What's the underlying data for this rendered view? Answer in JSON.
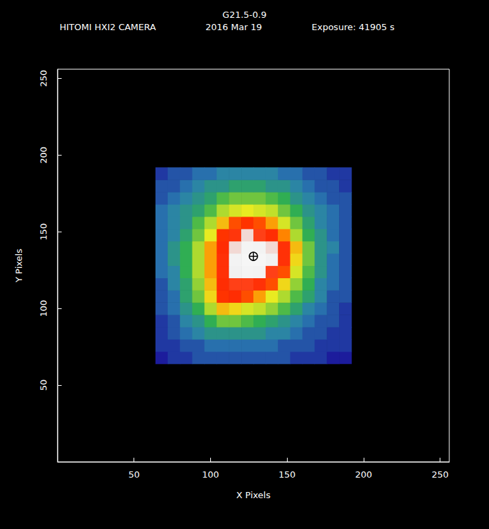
{
  "chart_data": {
    "type": "heatmap",
    "title": "G21.5-0.9",
    "subtitle": [
      "HITOMI HXI2 CAMERA",
      "2016 Mar 19",
      "Exposure: 41905 s"
    ],
    "x_label": "X Pixels",
    "y_label": "Y Pixels",
    "xlim": [
      0,
      256
    ],
    "ylim": [
      0,
      256
    ],
    "xticks": [
      50,
      100,
      150,
      200,
      250
    ],
    "yticks": [
      50,
      100,
      150,
      200,
      250
    ],
    "grid": false,
    "cells": {
      "x_edges": [
        64,
        72,
        80,
        88,
        96,
        104,
        112,
        120,
        128,
        136,
        144,
        152,
        160,
        168,
        176,
        184,
        192
      ],
      "y_edges": [
        64,
        72,
        80,
        88,
        96,
        104,
        112,
        120,
        128,
        136,
        144,
        152,
        160,
        168,
        176,
        184,
        192
      ],
      "values": [
        [
          0.8,
          0.9,
          0.9,
          1.0,
          1.0,
          1.0,
          1.0,
          1.0,
          1.0,
          1.0,
          1.0,
          0.9,
          0.9,
          0.9,
          0.8,
          0.8
        ],
        [
          0.9,
          0.9,
          1.0,
          1.0,
          1.1,
          1.1,
          1.1,
          1.1,
          1.1,
          1.1,
          1.0,
          1.0,
          1.0,
          0.9,
          0.9,
          0.9
        ],
        [
          0.9,
          1.0,
          1.1,
          1.2,
          1.3,
          1.3,
          1.3,
          1.3,
          1.3,
          1.2,
          1.2,
          1.1,
          1.0,
          1.0,
          0.9,
          0.9
        ],
        [
          0.9,
          1.0,
          1.2,
          1.3,
          1.5,
          1.7,
          1.7,
          1.6,
          1.5,
          1.4,
          1.3,
          1.2,
          1.1,
          1.0,
          1.0,
          0.9
        ],
        [
          1.0,
          1.1,
          1.3,
          1.5,
          1.9,
          2.4,
          2.3,
          2.1,
          2.0,
          1.8,
          1.6,
          1.4,
          1.2,
          1.1,
          1.0,
          0.9
        ],
        [
          1.0,
          1.1,
          1.4,
          1.7,
          2.3,
          2.9,
          3.0,
          2.8,
          2.5,
          2.2,
          1.9,
          1.6,
          1.4,
          1.2,
          1.0,
          1.0
        ],
        [
          1.0,
          1.2,
          1.4,
          1.8,
          2.4,
          3.0,
          3.3,
          3.3,
          3.1,
          2.8,
          2.3,
          1.8,
          1.5,
          1.2,
          1.1,
          1.0
        ],
        [
          1.1,
          1.2,
          1.5,
          1.9,
          2.5,
          3.1,
          3.7,
          3.9,
          3.8,
          3.3,
          2.8,
          2.1,
          1.6,
          1.3,
          1.1,
          1.0
        ],
        [
          1.1,
          1.3,
          1.5,
          1.9,
          2.5,
          3.1,
          3.8,
          4.0,
          4.0,
          3.7,
          3.1,
          2.3,
          1.7,
          1.3,
          1.1,
          1.0
        ],
        [
          1.1,
          1.3,
          1.5,
          1.9,
          2.5,
          3.0,
          3.6,
          3.9,
          3.8,
          3.6,
          3.1,
          2.4,
          1.7,
          1.3,
          1.2,
          1.0
        ],
        [
          1.1,
          1.2,
          1.4,
          1.7,
          2.2,
          2.9,
          3.2,
          3.6,
          3.3,
          3.0,
          2.6,
          1.9,
          1.5,
          1.3,
          1.1,
          1.0
        ],
        [
          1.1,
          1.2,
          1.3,
          1.6,
          1.9,
          2.4,
          2.8,
          2.9,
          2.8,
          2.5,
          2.1,
          1.7,
          1.4,
          1.2,
          1.1,
          1.0
        ],
        [
          1.1,
          1.2,
          1.3,
          1.4,
          1.6,
          1.9,
          2.1,
          2.2,
          2.1,
          2.0,
          1.7,
          1.5,
          1.3,
          1.2,
          1.1,
          1.0
        ],
        [
          1.0,
          1.1,
          1.2,
          1.3,
          1.4,
          1.6,
          1.7,
          1.7,
          1.7,
          1.6,
          1.5,
          1.3,
          1.2,
          1.1,
          1.0,
          1.0
        ],
        [
          1.0,
          1.0,
          1.1,
          1.2,
          1.3,
          1.3,
          1.4,
          1.4,
          1.4,
          1.3,
          1.3,
          1.2,
          1.1,
          1.0,
          1.0,
          0.9
        ],
        [
          0.9,
          1.0,
          1.0,
          1.1,
          1.1,
          1.2,
          1.2,
          1.2,
          1.2,
          1.2,
          1.1,
          1.1,
          1.0,
          1.0,
          0.9,
          0.9
        ]
      ]
    },
    "series": [
      {
        "type": "scatter",
        "marker": "circle-cross",
        "color": "#000000",
        "x": [
          128
        ],
        "y": [
          134
        ]
      }
    ]
  }
}
